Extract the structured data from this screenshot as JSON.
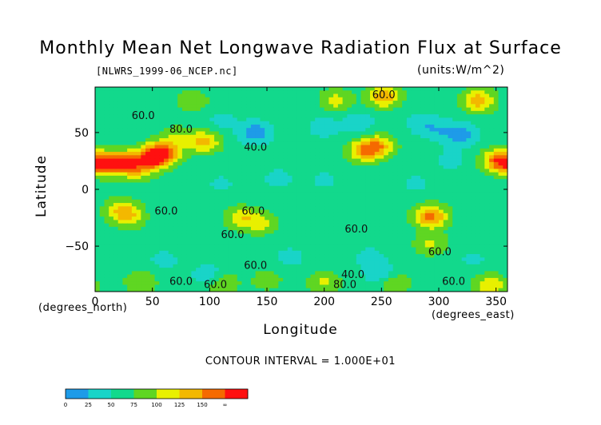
{
  "chart_data": {
    "type": "heatmap",
    "title": "Monthly Mean Net Longwave Radiation Flux at Surface",
    "source_label": "[NLWRS_1999-06_NCEP.nc]",
    "units_label": "(units:W/m^2)",
    "xlabel": "Longitude",
    "ylabel": "Latitude",
    "x_unit_label": "(degrees_east)",
    "y_unit_label": "(degrees_north)",
    "xlim": [
      0,
      360
    ],
    "ylim": [
      -90,
      90
    ],
    "x_ticks": [
      0,
      50,
      100,
      150,
      200,
      250,
      300,
      350
    ],
    "y_ticks": [
      50,
      0,
      -50
    ],
    "contour_interval_text": "CONTOUR INTERVAL = 1.000E+01",
    "colorbar": {
      "boundaries": [
        "0",
        "25",
        "50",
        "75",
        "100",
        "125",
        "150",
        "∞"
      ],
      "colors": [
        "#1e9be8",
        "#19d4c8",
        "#12d98c",
        "#5fd622",
        "#e8f000",
        "#f3b800",
        "#f56a00",
        "#ff1010"
      ]
    },
    "contour_labels": [
      {
        "text": "60.0",
        "lon": 42,
        "lat": 62
      },
      {
        "text": "60.0",
        "lon": 252,
        "lat": 80
      },
      {
        "text": "80.0",
        "lon": 75,
        "lat": 50
      },
      {
        "text": "40.0",
        "lon": 140,
        "lat": 34
      },
      {
        "text": "60.0",
        "lon": 62,
        "lat": -22
      },
      {
        "text": "60.0",
        "lon": 138,
        "lat": -22
      },
      {
        "text": "60.0",
        "lon": 120,
        "lat": -43
      },
      {
        "text": "60.0",
        "lon": 228,
        "lat": -38
      },
      {
        "text": "60.0",
        "lon": 301,
        "lat": -58
      },
      {
        "text": "60.0",
        "lon": 140,
        "lat": -70
      },
      {
        "text": "40.0",
        "lon": 225,
        "lat": -78
      },
      {
        "text": "60.0",
        "lon": 75,
        "lat": -84
      },
      {
        "text": "60.0",
        "lon": 105,
        "lat": -87
      },
      {
        "text": "80.0",
        "lon": 218,
        "lat": -87
      },
      {
        "text": "60.0",
        "lon": 313,
        "lat": -84
      }
    ],
    "features": [
      {
        "lon": 8,
        "lat": 22,
        "value": 160
      },
      {
        "lon": 25,
        "lat": 24,
        "value": 145
      },
      {
        "lon": 50,
        "lat": 28,
        "value": 165
      },
      {
        "lon": 60,
        "lat": 32,
        "value": 155
      },
      {
        "lon": 38,
        "lat": 18,
        "value": 120
      },
      {
        "lon": 95,
        "lat": 42,
        "value": 135
      },
      {
        "lon": 70,
        "lat": 46,
        "value": 95
      },
      {
        "lon": 235,
        "lat": 34,
        "value": 140
      },
      {
        "lon": 248,
        "lat": 38,
        "value": 130
      },
      {
        "lon": 352,
        "lat": 25,
        "value": 160
      },
      {
        "lon": 23,
        "lat": -18,
        "value": 120
      },
      {
        "lon": 30,
        "lat": -25,
        "value": 105
      },
      {
        "lon": 128,
        "lat": -25,
        "value": 115
      },
      {
        "lon": 145,
        "lat": -30,
        "value": 105
      },
      {
        "lon": 293,
        "lat": -24,
        "value": 160
      },
      {
        "lon": 293,
        "lat": -48,
        "value": 105
      },
      {
        "lon": 252,
        "lat": 82,
        "value": 145
      },
      {
        "lon": 210,
        "lat": 78,
        "value": 110
      },
      {
        "lon": 335,
        "lat": 78,
        "value": 140
      },
      {
        "lon": 85,
        "lat": 78,
        "value": 95
      },
      {
        "lon": 140,
        "lat": 50,
        "value": 10
      },
      {
        "lon": 110,
        "lat": 60,
        "value": 40
      },
      {
        "lon": 200,
        "lat": 55,
        "value": 35
      },
      {
        "lon": 230,
        "lat": 58,
        "value": 30
      },
      {
        "lon": 285,
        "lat": 58,
        "value": 35
      },
      {
        "lon": 300,
        "lat": 52,
        "value": 35
      },
      {
        "lon": 320,
        "lat": 48,
        "value": 10
      },
      {
        "lon": 160,
        "lat": 10,
        "value": 40
      },
      {
        "lon": 110,
        "lat": 5,
        "value": 45
      },
      {
        "lon": 200,
        "lat": 8,
        "value": 45
      },
      {
        "lon": 280,
        "lat": 5,
        "value": 45
      },
      {
        "lon": 310,
        "lat": 25,
        "value": 40
      },
      {
        "lon": 170,
        "lat": -60,
        "value": 40
      },
      {
        "lon": 240,
        "lat": -60,
        "value": 40
      },
      {
        "lon": 60,
        "lat": -62,
        "value": 40
      },
      {
        "lon": 330,
        "lat": -62,
        "value": 45
      },
      {
        "lon": 150,
        "lat": -80,
        "value": 90
      },
      {
        "lon": 110,
        "lat": -82,
        "value": 110
      },
      {
        "lon": 200,
        "lat": -82,
        "value": 105
      },
      {
        "lon": 260,
        "lat": -83,
        "value": 110
      },
      {
        "lon": 40,
        "lat": -82,
        "value": 100
      },
      {
        "lon": 345,
        "lat": -85,
        "value": 125
      },
      {
        "lon": 100,
        "lat": -76,
        "value": 20
      },
      {
        "lon": 250,
        "lat": -76,
        "value": 20
      }
    ],
    "background_value": 62
  }
}
